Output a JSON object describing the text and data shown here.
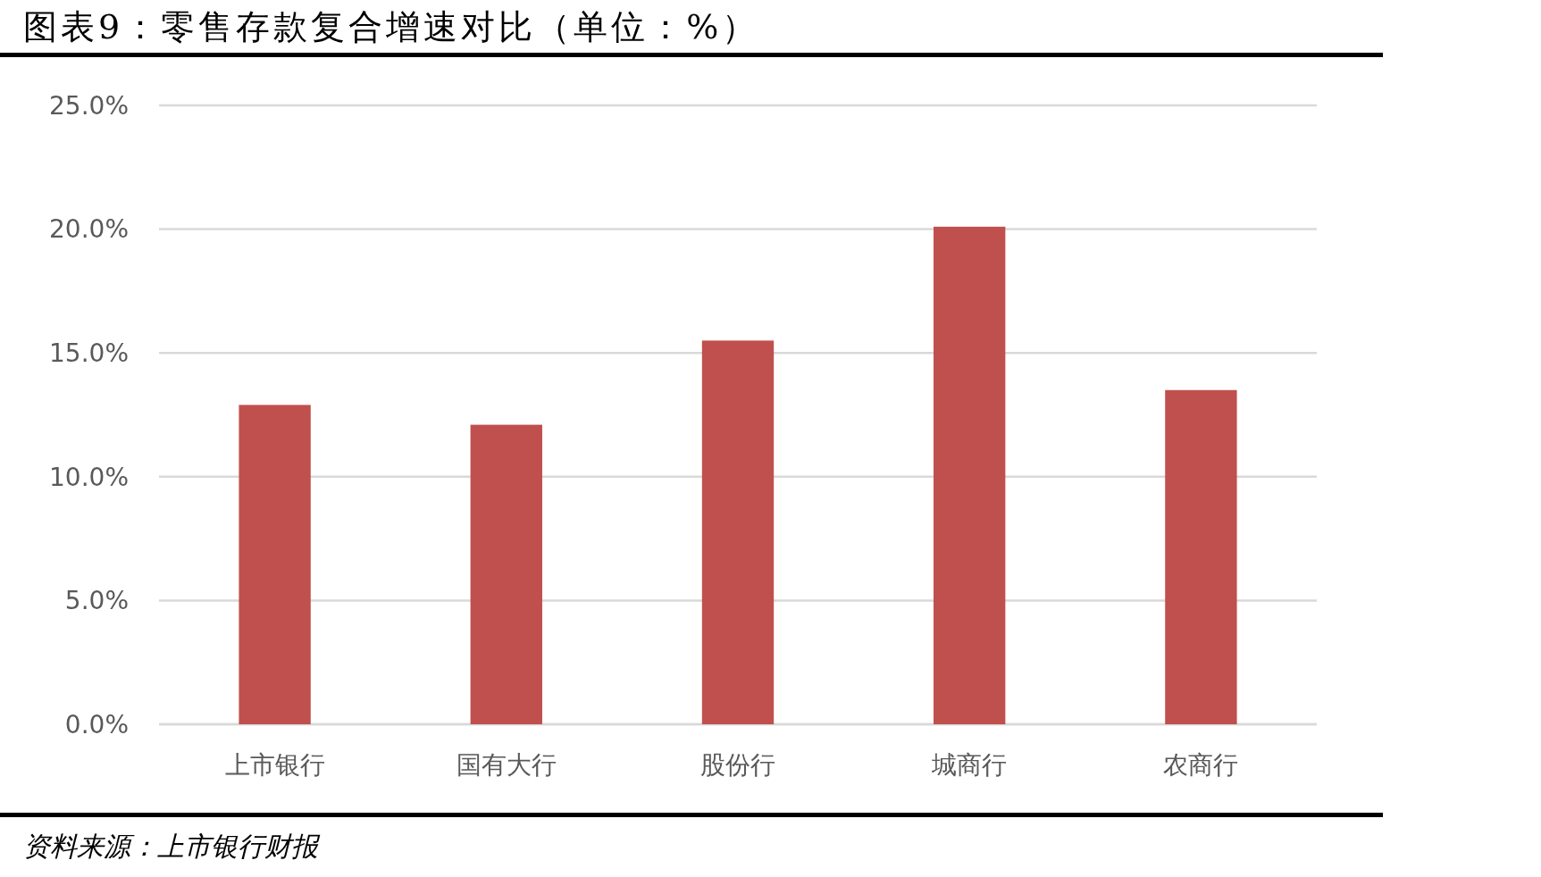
{
  "chart_data": {
    "type": "bar",
    "title": "图表9：零售存款复合增速对比（单位：%）",
    "categories": [
      "上市银行",
      "国有大行",
      "股份行",
      "城商行",
      "农商行"
    ],
    "values": [
      12.9,
      12.1,
      15.5,
      20.1,
      13.5
    ],
    "color": "#c0504d",
    "ylim": [
      0,
      25
    ],
    "yticks": [
      {
        "value": 0,
        "label": "0.0%"
      },
      {
        "value": 5,
        "label": "5.0%"
      },
      {
        "value": 10,
        "label": "10.0%"
      },
      {
        "value": 15,
        "label": "15.0%"
      },
      {
        "value": 20,
        "label": "20.0%"
      },
      {
        "value": 25,
        "label": "25.0%"
      }
    ],
    "grid": "y",
    "annotations": [
      "资料来源：上市银行财报"
    ]
  }
}
